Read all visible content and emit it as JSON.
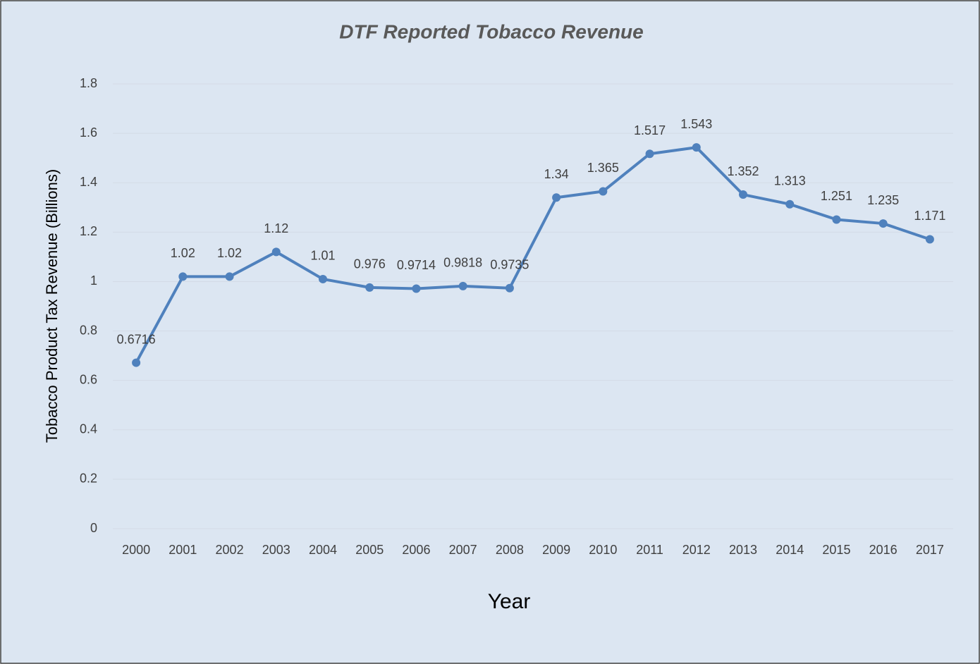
{
  "chart_data": {
    "type": "line",
    "title": "DTF Reported Tobacco Revenue",
    "x_label": "Year",
    "y_label": "Tobacco Product Tax Revenue (Billions)",
    "categories": [
      "2000",
      "2001",
      "2002",
      "2003",
      "2004",
      "2005",
      "2006",
      "2007",
      "2008",
      "2009",
      "2010",
      "2011",
      "2012",
      "2013",
      "2014",
      "2015",
      "2016",
      "2017"
    ],
    "series": [
      {
        "name": "Tobacco Product Tax Revenue",
        "color": "#4f81bd",
        "values": [
          0.6716,
          1.02,
          1.02,
          1.12,
          1.01,
          0.976,
          0.9714,
          0.9818,
          0.9735,
          1.34,
          1.365,
          1.517,
          1.543,
          1.352,
          1.313,
          1.251,
          1.235,
          1.171
        ]
      }
    ],
    "ylim": [
      0,
      1.8
    ],
    "yticks": [
      0,
      0.2,
      0.4,
      0.6,
      0.8,
      1,
      1.2,
      1.4,
      1.6,
      1.8
    ],
    "grid": true,
    "data_labels": true
  }
}
